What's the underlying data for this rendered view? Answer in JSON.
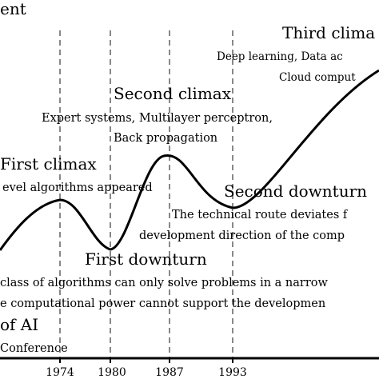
{
  "figure": {
    "top_label": "ent",
    "years": [
      "1974",
      "1980",
      "1987",
      "1993"
    ],
    "annotations": {
      "third_climax_title": "Third clima",
      "third_climax_line1": "Deep learning, Data ac",
      "third_climax_line2": "Cloud comput",
      "second_climax_title": "Second climax",
      "second_climax_line1": "Expert systems, Multilayer perceptron,",
      "second_climax_line2": "Back propagation",
      "first_climax_title": "First climax",
      "first_climax_line1": "evel algorithms appeared",
      "second_downturn_title": "Second downturn",
      "second_downturn_line1": "The technical route deviates f",
      "second_downturn_line2": "development direction of the comp",
      "first_downturn_title": "First  downturn",
      "first_downturn_line1": "class of algorithms can only solve problems in a narrow",
      "first_downturn_line2": "e computational power cannot support the developmen",
      "birth_title": "of AI",
      "birth_line1": "Conference"
    },
    "colors": {
      "curve": "#000000",
      "guide_lines": "#888888",
      "background": "#ffffff"
    }
  }
}
